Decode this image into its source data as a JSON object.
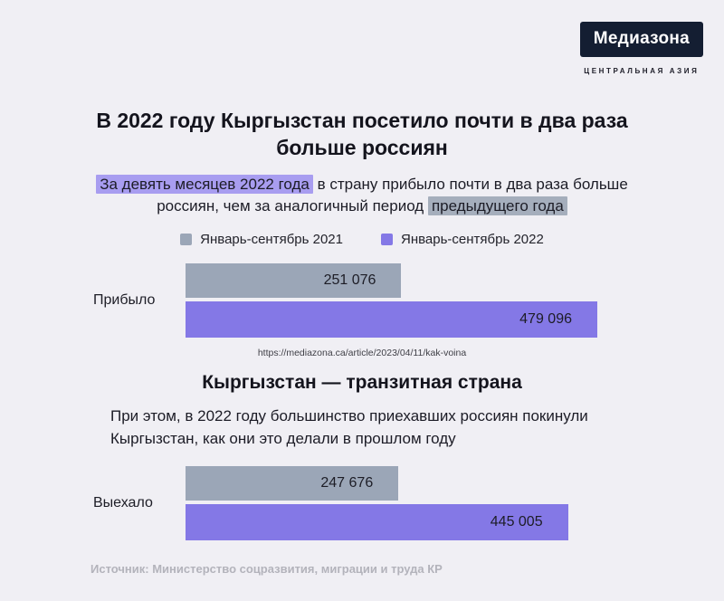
{
  "brand": {
    "logo": "Медиазона",
    "tagline": "ЦЕНТРАЛЬНАЯ АЗИЯ",
    "logo_bg": "#141e32"
  },
  "title": "В 2022 году Кыргызстан посетило почти в два раза больше россиян",
  "intro": {
    "highlight_1": "За девять месяцев 2022 года",
    "middle": " в страну прибыло почти в два раза больше россиян, чем за аналогичный период ",
    "highlight_2": "предыдущего года"
  },
  "legend": [
    {
      "label": "Январь-сентябрь 2021",
      "series": "y2021"
    },
    {
      "label": "Январь-сентябрь 2022",
      "series": "y2022"
    }
  ],
  "colors": {
    "y2021": "#9ba6b7",
    "y2022": "#8478e6",
    "highlight_purple": "#a89df0",
    "highlight_gray": "#a5aebc"
  },
  "source_url": "https://mediazona.ca/article/2023/04/11/kak-voina",
  "section2": {
    "title": "Кыргызстан — транзитная страна",
    "text": "При этом, в 2022 году большинство приехавших россиян покинули Кыргызстан, как они это делали в прошлом году"
  },
  "footer": "Источник: Министерство соцразвития, миграции и труда КР",
  "chart_data": {
    "type": "bar",
    "orientation": "horizontal",
    "title": "В 2022 году Кыргызстан посетило почти в два раза больше россиян",
    "legend_position": "top",
    "max_value": 479096,
    "charts": [
      {
        "category": "Прибыло",
        "bars": [
          {
            "series": "y2021",
            "label": "251 076",
            "value": 251076
          },
          {
            "series": "y2022",
            "label": "479 096",
            "value": 479096
          }
        ]
      },
      {
        "category": "Выехало",
        "bars": [
          {
            "series": "y2021",
            "label": "247 676",
            "value": 247676
          },
          {
            "series": "y2022",
            "label": "445 005",
            "value": 445005
          }
        ]
      }
    ]
  }
}
